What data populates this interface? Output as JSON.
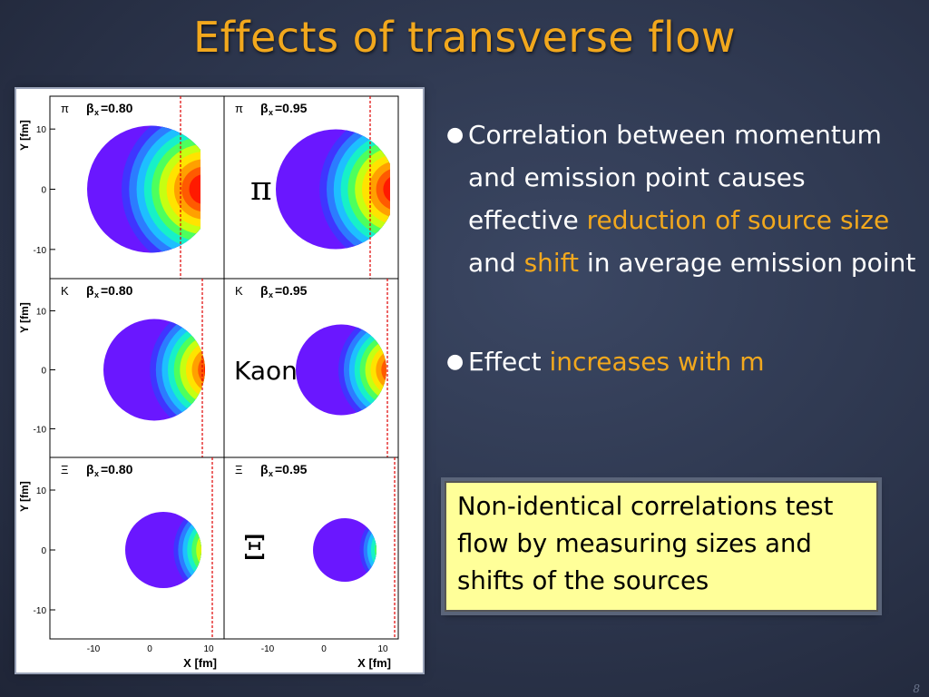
{
  "title": "Effects of transverse flow",
  "figure": {
    "panels": [
      {
        "particle": "π",
        "beta": "0.80"
      },
      {
        "particle": "π",
        "beta": "0.95"
      },
      {
        "particle": "K",
        "beta": "0.80"
      },
      {
        "particle": "K",
        "beta": "0.95"
      },
      {
        "particle": "Ξ",
        "beta": "0.80"
      },
      {
        "particle": "Ξ",
        "beta": "0.95"
      }
    ],
    "row_labels": [
      "π",
      "Kaon",
      "Ξ"
    ],
    "y_axis_label": "Y [fm]",
    "x_axis_label": "X [fm]",
    "y_ticks": [
      "10",
      "0",
      "-10"
    ],
    "x_ticks": [
      "-10",
      "0",
      "10"
    ]
  },
  "bullets": [
    {
      "parts": [
        {
          "text": "Correlation between momentum and emission point causes effective ",
          "highlight": false
        },
        {
          "text": "reduction of source size",
          "highlight": true
        },
        {
          "text": " and ",
          "highlight": false
        },
        {
          "text": "shift",
          "highlight": true
        },
        {
          "text": " in average emission point",
          "highlight": false
        }
      ]
    },
    {
      "parts": [
        {
          "text": "Effect ",
          "highlight": false
        },
        {
          "text": "increases with m",
          "highlight": true
        }
      ]
    }
  ],
  "callout": "Non-identical correlations test flow by measuring sizes and shifts of the sources",
  "page_number": "8",
  "colors": {
    "accent": "#f2a81d",
    "callout_bg": "#ffff99"
  }
}
